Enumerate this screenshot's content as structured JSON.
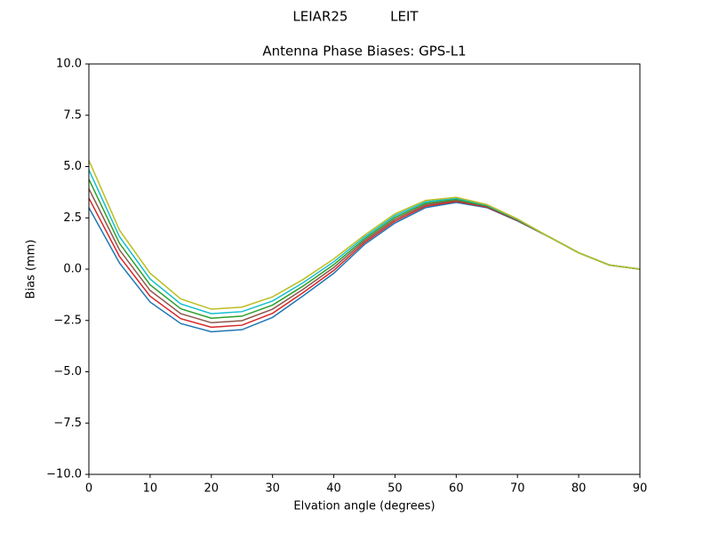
{
  "chart_data": {
    "type": "line",
    "suptitle": "LEIAR25          LEIT",
    "title": "Antenna Phase Biases: GPS-L1",
    "xlabel": "Elvation angle (degrees)",
    "ylabel": "Bias (mm)",
    "x": [
      0,
      5,
      10,
      15,
      20,
      25,
      30,
      35,
      40,
      45,
      50,
      55,
      60,
      65,
      70,
      75,
      80,
      85,
      90
    ],
    "xlim": [
      0,
      90
    ],
    "xticks": [
      0,
      10,
      20,
      30,
      40,
      50,
      60,
      70,
      80,
      90
    ],
    "ylim": [
      -10,
      10
    ],
    "yticks": [
      {
        "value": -10,
        "label": "−10.0"
      },
      {
        "value": -7.5,
        "label": "−7.5"
      },
      {
        "value": -5,
        "label": "−5.0"
      },
      {
        "value": -2.5,
        "label": "−2.5"
      },
      {
        "value": 0,
        "label": "0.0"
      },
      {
        "value": 2.5,
        "label": "2.5"
      },
      {
        "value": 5,
        "label": "5.0"
      },
      {
        "value": 7.5,
        "label": "7.5"
      },
      {
        "value": 10,
        "label": "10.0"
      }
    ],
    "series": [
      {
        "color": "#1f77b4",
        "values": [
          3.0,
          0.3,
          -1.6,
          -2.65,
          -3.05,
          -2.95,
          -2.35,
          -1.3,
          -0.2,
          1.2,
          2.25,
          3.0,
          3.25,
          3.0,
          2.35,
          1.6,
          0.8,
          0.2,
          0
        ]
      },
      {
        "color": "#d62728",
        "values": [
          3.46,
          0.62,
          -1.32,
          -2.41,
          -2.83,
          -2.73,
          -2.15,
          -1.14,
          -0.06,
          1.29,
          2.34,
          3.07,
          3.3,
          3.03,
          2.37,
          1.6,
          0.8,
          0.2,
          0
        ]
      },
      {
        "color": "#8c564b",
        "values": [
          3.92,
          0.94,
          -1.04,
          -2.17,
          -2.61,
          -2.51,
          -1.95,
          -0.98,
          0.08,
          1.38,
          2.43,
          3.14,
          3.35,
          3.06,
          2.39,
          1.6,
          0.8,
          0.2,
          0
        ]
      },
      {
        "color": "#2ca02c",
        "values": [
          4.38,
          1.26,
          -0.76,
          -1.93,
          -2.39,
          -2.29,
          -1.75,
          -0.82,
          0.22,
          1.47,
          2.52,
          3.21,
          3.4,
          3.09,
          2.41,
          1.6,
          0.8,
          0.2,
          0
        ]
      },
      {
        "color": "#17becf",
        "values": [
          4.84,
          1.58,
          -0.48,
          -1.69,
          -2.17,
          -2.07,
          -1.55,
          -0.66,
          0.36,
          1.56,
          2.61,
          3.28,
          3.45,
          3.12,
          2.43,
          1.6,
          0.8,
          0.2,
          0
        ]
      },
      {
        "color": "#bcbd22",
        "values": [
          5.3,
          1.9,
          -0.2,
          -1.45,
          -1.95,
          -1.85,
          -1.35,
          -0.5,
          0.5,
          1.65,
          2.7,
          3.35,
          3.5,
          3.15,
          2.45,
          1.6,
          0.8,
          0.2,
          0
        ]
      }
    ]
  }
}
